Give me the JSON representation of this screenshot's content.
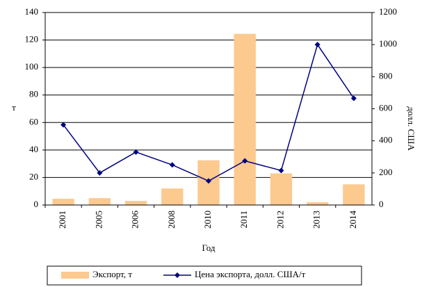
{
  "chart_data": {
    "type": "bar",
    "categories": [
      "2001",
      "2005",
      "2006",
      "2008",
      "2010",
      "2011",
      "2012",
      "2013",
      "2014"
    ],
    "series": [
      {
        "name": "Экспорт, т",
        "type": "bar",
        "color": "#fcc98f",
        "axis": "y",
        "values": [
          4.5,
          5,
          3,
          12,
          32.5,
          124.5,
          23,
          2,
          15
        ]
      },
      {
        "name": "Цена экспорта, долл. США/т",
        "type": "line",
        "color": "#000080",
        "axis": "y2",
        "values": [
          500,
          200,
          330,
          250,
          150,
          275,
          215,
          1000,
          665
        ]
      }
    ],
    "xlabel": "Год",
    "ylabel": "т",
    "y2label": "долл. США",
    "ylim": [
      0,
      140
    ],
    "yticks": [
      0,
      20,
      40,
      60,
      80,
      100,
      120,
      140
    ],
    "y2lim": [
      0,
      1200
    ],
    "y2ticks": [
      0,
      200,
      400,
      600,
      800,
      1000,
      1200
    ],
    "grid": true,
    "legend": "bottom"
  }
}
